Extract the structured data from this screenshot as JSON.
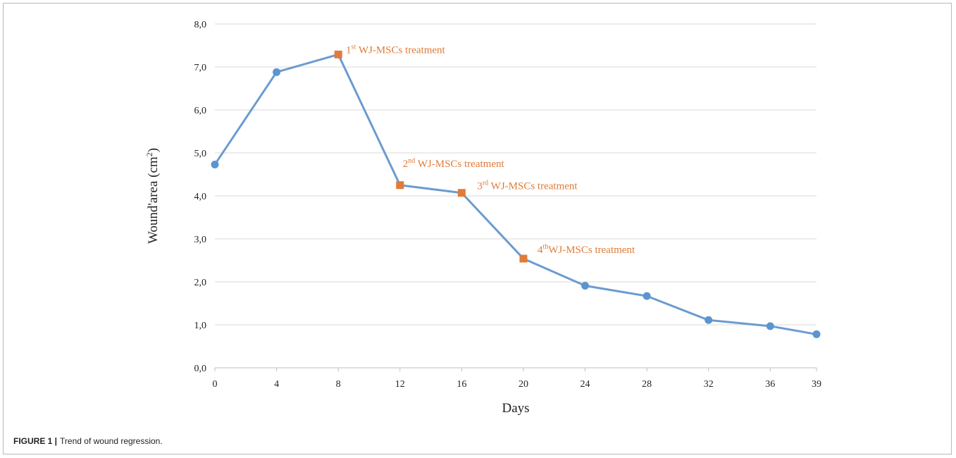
{
  "figure": {
    "caption_label": "FIGURE 1 |",
    "caption_text": "Trend of wound regression."
  },
  "chart_data": {
    "type": "line",
    "xlabel": "Days",
    "ylabel_main": "Wound'area (cm",
    "ylabel_sup": "2",
    "ylabel_close": ")",
    "categories": [
      "0",
      "4",
      "8",
      "12",
      "16",
      "20",
      "24",
      "28",
      "32",
      "36",
      "39"
    ],
    "ylim": [
      0,
      8
    ],
    "ytick_labels": [
      "0,0",
      "1,0",
      "2,0",
      "3,0",
      "4,0",
      "5,0",
      "6,0",
      "7,0",
      "8,0"
    ],
    "grid": "horizontal",
    "series": [
      {
        "values": [
          4.73,
          6.88,
          7.29,
          4.25,
          4.07,
          2.54,
          1.91,
          1.67,
          1.11,
          0.97,
          0.78
        ]
      }
    ],
    "colors": {
      "line": "#6b9bd1",
      "marker": "#5b95cf",
      "treatment_marker": "#e07b39",
      "annotation_text": "#e07b39",
      "grid": "#d9d9d9"
    },
    "annotations": [
      {
        "category": "8",
        "ordinal": "1",
        "sup": "st",
        "text": " WJ-MSCs treatment"
      },
      {
        "category": "12",
        "ordinal": "2",
        "sup": "nd",
        "text": " WJ-MSCs treatment"
      },
      {
        "category": "16",
        "ordinal": "3",
        "sup": "rd",
        "text": " WJ-MSCs treatment"
      },
      {
        "category": "20",
        "ordinal": "4",
        "sup": "th",
        "text": "WJ-MSCs treatment"
      }
    ]
  }
}
